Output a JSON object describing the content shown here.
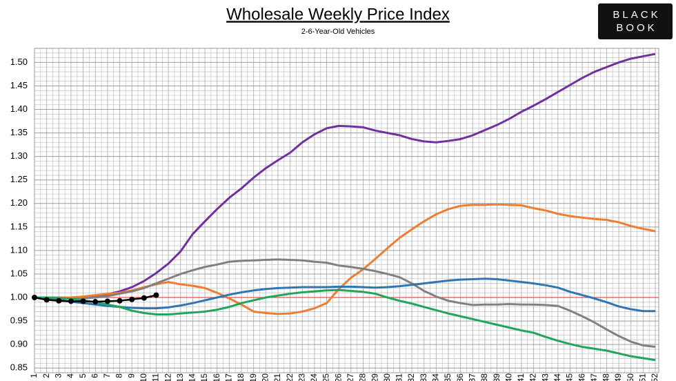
{
  "chart_data": {
    "type": "line",
    "title": "Wholesale Weekly Price Index",
    "subtitle": "2-6-Year-Old Vehicles",
    "logo": [
      "BLACK",
      "BOOK"
    ],
    "categories": [
      "1",
      "2",
      "3",
      "4",
      "5",
      "6",
      "7",
      "8",
      "9",
      "10",
      "11",
      "12",
      "13",
      "14",
      "15",
      "16",
      "17",
      "18",
      "19",
      "20",
      "21",
      "22",
      "23",
      "24",
      "25",
      "26",
      "27",
      "28",
      "29",
      "30",
      "31",
      "32",
      "33",
      "34",
      "35",
      "36",
      "37",
      "38",
      "39",
      "40",
      "41",
      "42",
      "43",
      "44",
      "45",
      "46",
      "47",
      "48",
      "49",
      "50",
      "51",
      "52"
    ],
    "ylim": [
      0.84,
      1.53
    ],
    "yticks": [
      0.85,
      {
        "value": 0.9,
        "label": "0.90"
      },
      0.95,
      {
        "value": 1.0,
        "label": "1.00"
      },
      1.05,
      {
        "value": 1.1,
        "label": "1.10"
      },
      1.15,
      {
        "value": 1.2,
        "label": "1.20"
      },
      1.25,
      {
        "value": 1.3,
        "label": "1.30"
      },
      1.35,
      {
        "value": 1.4,
        "label": "1.40"
      },
      1.45,
      {
        "value": 1.5,
        "label": "1.50"
      }
    ],
    "grid": true,
    "minor_grid_per_tick": 5,
    "reference_line": {
      "value": 1.0,
      "color": "#e8524a"
    },
    "series": [
      {
        "color": "#7030a0",
        "values": [
          1.0,
          1.0,
          0.998,
          0.998,
          1.0,
          1.003,
          1.007,
          1.013,
          1.022,
          1.035,
          1.052,
          1.072,
          1.098,
          1.135,
          1.162,
          1.188,
          1.212,
          1.232,
          1.255,
          1.275,
          1.292,
          1.308,
          1.33,
          1.347,
          1.36,
          1.365,
          1.364,
          1.362,
          1.355,
          1.35,
          1.345,
          1.337,
          1.332,
          1.33,
          1.333,
          1.337,
          1.345,
          1.356,
          1.367,
          1.38,
          1.395,
          1.408,
          1.422,
          1.437,
          1.452,
          1.467,
          1.48,
          1.49,
          1.5,
          1.508,
          1.513,
          1.518
        ]
      },
      {
        "color": "#ed7d31",
        "values": [
          1.0,
          1.0,
          1.0,
          1.0,
          1.002,
          1.005,
          1.008,
          1.01,
          1.015,
          1.022,
          1.028,
          1.033,
          1.028,
          1.025,
          1.02,
          1.01,
          0.998,
          0.985,
          0.97,
          0.967,
          0.965,
          0.966,
          0.97,
          0.977,
          0.988,
          1.018,
          1.042,
          1.06,
          1.082,
          1.105,
          1.127,
          1.145,
          1.162,
          1.177,
          1.188,
          1.195,
          1.197,
          1.197,
          1.198,
          1.197,
          1.196,
          1.19,
          1.185,
          1.178,
          1.173,
          1.17,
          1.167,
          1.165,
          1.16,
          1.152,
          1.146,
          1.141
        ]
      },
      {
        "color": "#808080",
        "values": [
          1.0,
          0.998,
          0.997,
          0.997,
          0.998,
          1.0,
          1.003,
          1.008,
          1.013,
          1.02,
          1.03,
          1.04,
          1.05,
          1.058,
          1.065,
          1.07,
          1.076,
          1.078,
          1.079,
          1.08,
          1.081,
          1.08,
          1.079,
          1.076,
          1.074,
          1.068,
          1.065,
          1.061,
          1.056,
          1.05,
          1.043,
          1.03,
          1.014,
          1.002,
          0.993,
          0.988,
          0.984,
          0.985,
          0.985,
          0.986,
          0.985,
          0.985,
          0.984,
          0.982,
          0.972,
          0.96,
          0.947,
          0.932,
          0.918,
          0.906,
          0.898,
          0.895
        ]
      },
      {
        "color": "#2e75b6",
        "values": [
          1.0,
          0.997,
          0.994,
          0.991,
          0.988,
          0.985,
          0.982,
          0.98,
          0.978,
          0.977,
          0.977,
          0.979,
          0.983,
          0.988,
          0.994,
          1.0,
          1.006,
          1.011,
          1.015,
          1.018,
          1.02,
          1.021,
          1.022,
          1.022,
          1.022,
          1.023,
          1.023,
          1.022,
          1.021,
          1.022,
          1.024,
          1.027,
          1.03,
          1.033,
          1.036,
          1.038,
          1.039,
          1.04,
          1.039,
          1.036,
          1.033,
          1.03,
          1.026,
          1.021,
          1.012,
          1.005,
          0.998,
          0.99,
          0.981,
          0.975,
          0.971,
          0.971
        ]
      },
      {
        "color": "#21a55a",
        "values": [
          1.0,
          1.0,
          0.999,
          0.997,
          0.994,
          0.99,
          0.985,
          0.98,
          0.972,
          0.967,
          0.964,
          0.964,
          0.966,
          0.968,
          0.97,
          0.974,
          0.98,
          0.988,
          0.994,
          1.0,
          1.004,
          1.008,
          1.011,
          1.013,
          1.015,
          1.016,
          1.014,
          1.012,
          1.008,
          1.0,
          0.993,
          0.987,
          0.98,
          0.973,
          0.966,
          0.96,
          0.954,
          0.948,
          0.942,
          0.936,
          0.93,
          0.925,
          0.916,
          0.908,
          0.901,
          0.895,
          0.891,
          0.887,
          0.881,
          0.875,
          0.871,
          0.867
        ]
      },
      {
        "color": "#000000",
        "markers": true,
        "values": [
          1.0,
          0.995,
          0.993,
          0.992,
          0.992,
          0.991,
          0.992,
          0.993,
          0.996,
          0.999,
          1.005,
          null,
          null,
          null,
          null,
          null,
          null,
          null,
          null,
          null,
          null,
          null,
          null,
          null,
          null,
          null,
          null,
          null,
          null,
          null,
          null,
          null,
          null,
          null,
          null,
          null,
          null,
          null,
          null,
          null,
          null,
          null,
          null,
          null,
          null,
          null,
          null,
          null,
          null,
          null,
          null,
          null
        ]
      }
    ]
  }
}
